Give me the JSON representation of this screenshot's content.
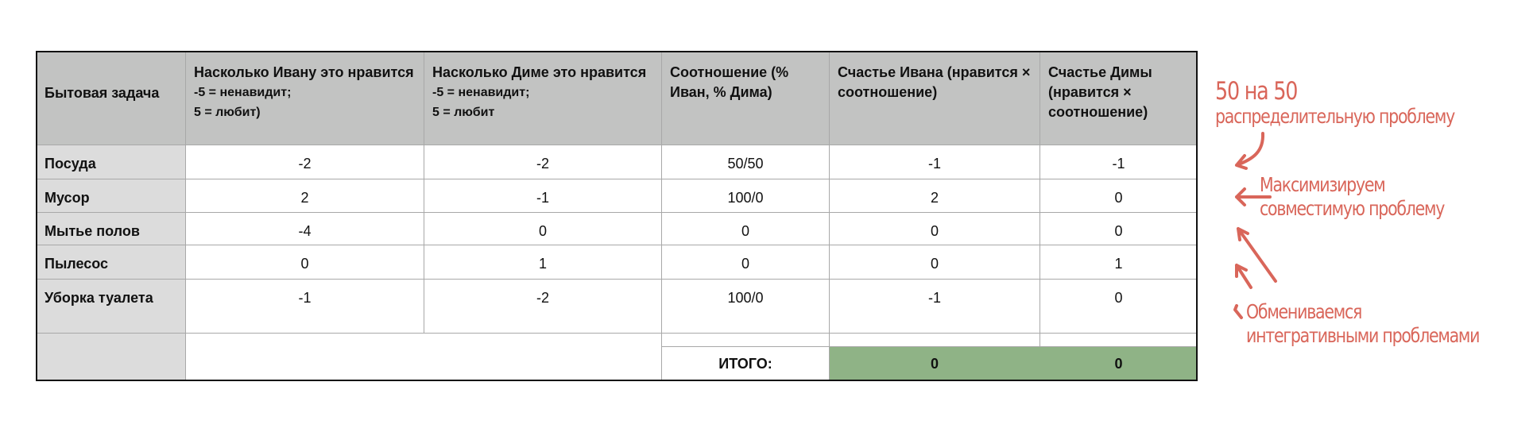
{
  "table": {
    "headers": [
      {
        "title": "Бытовая задача"
      },
      {
        "title": "Насколько Ивану это нравится",
        "note1": "-5 = ненавидит;",
        "note2": "5 = любит)"
      },
      {
        "title": "Насколько Диме это нравится",
        "note1": "-5 = ненавидит;",
        "note2": "5 = любит"
      },
      {
        "title": "Соотношение (% Иван, % Дима)"
      },
      {
        "title": "Счастье Ивана (нравится × соотношение)"
      },
      {
        "title": "Счастье Димы (нравится × соотношение)"
      }
    ],
    "rows": [
      {
        "task": "Посуда",
        "ivan": "-2",
        "dima": "-2",
        "ratio": "50/50",
        "ivan_h": "-1",
        "dima_h": "-1"
      },
      {
        "task": "Мусор",
        "ivan": "2",
        "dima": "-1",
        "ratio": "100/0",
        "ivan_h": "2",
        "dima_h": "0"
      },
      {
        "task": "Мытье полов",
        "ivan": "-4",
        "dima": "0",
        "ratio": "0",
        "ivan_h": "0",
        "dima_h": "0"
      },
      {
        "task": "Пылесос",
        "ivan": "0",
        "dima": "1",
        "ratio": "0",
        "ivan_h": "0",
        "dima_h": "1"
      },
      {
        "task": "Уборка туалета",
        "ivan": "-1",
        "dima": "-2",
        "ratio": "100/0",
        "ivan_h": "-1",
        "dima_h": "0"
      }
    ],
    "total": {
      "label": "ИТОГО:",
      "ivan": "0",
      "dima": "0"
    },
    "colors": {
      "header": "#c2c3c2",
      "label_col": "#dcdcdc",
      "total": "#8fb386"
    }
  },
  "annotations": {
    "color": "#d9665a",
    "distributive": {
      "line1": "50 на 50",
      "line2": "распределительную проблему"
    },
    "compatible": {
      "line1": "Максимизируем",
      "line2": "совместимую проблему"
    },
    "integrative": {
      "line1": "Обмениваемся",
      "line2": "интегративными проблемами"
    }
  }
}
